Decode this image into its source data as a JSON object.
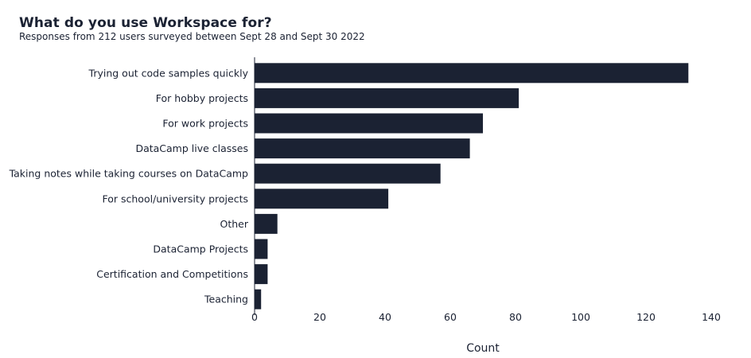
{
  "chart_data": {
    "type": "bar",
    "orientation": "horizontal",
    "title": "What do you use Workspace for?",
    "subtitle": "Responses from 212 users surveyed between Sept 28 and Sept 30 2022",
    "xlabel": "Count",
    "ylabel": "",
    "categories": [
      "Trying out code samples quickly",
      "For hobby projects",
      "For work projects",
      "DataCamp live classes",
      "Taking notes while taking courses on DataCamp",
      "For school/university projects",
      "Other",
      "DataCamp Projects",
      "Certification and Competitions",
      "Teaching"
    ],
    "values": [
      133,
      81,
      70,
      66,
      57,
      41,
      7,
      4,
      4,
      2
    ],
    "xlim": [
      0,
      140
    ],
    "xticks": [
      "0",
      "20",
      "40",
      "60",
      "80",
      "100",
      "120",
      "140"
    ],
    "grid": false,
    "bar_color": "#1b2233"
  }
}
